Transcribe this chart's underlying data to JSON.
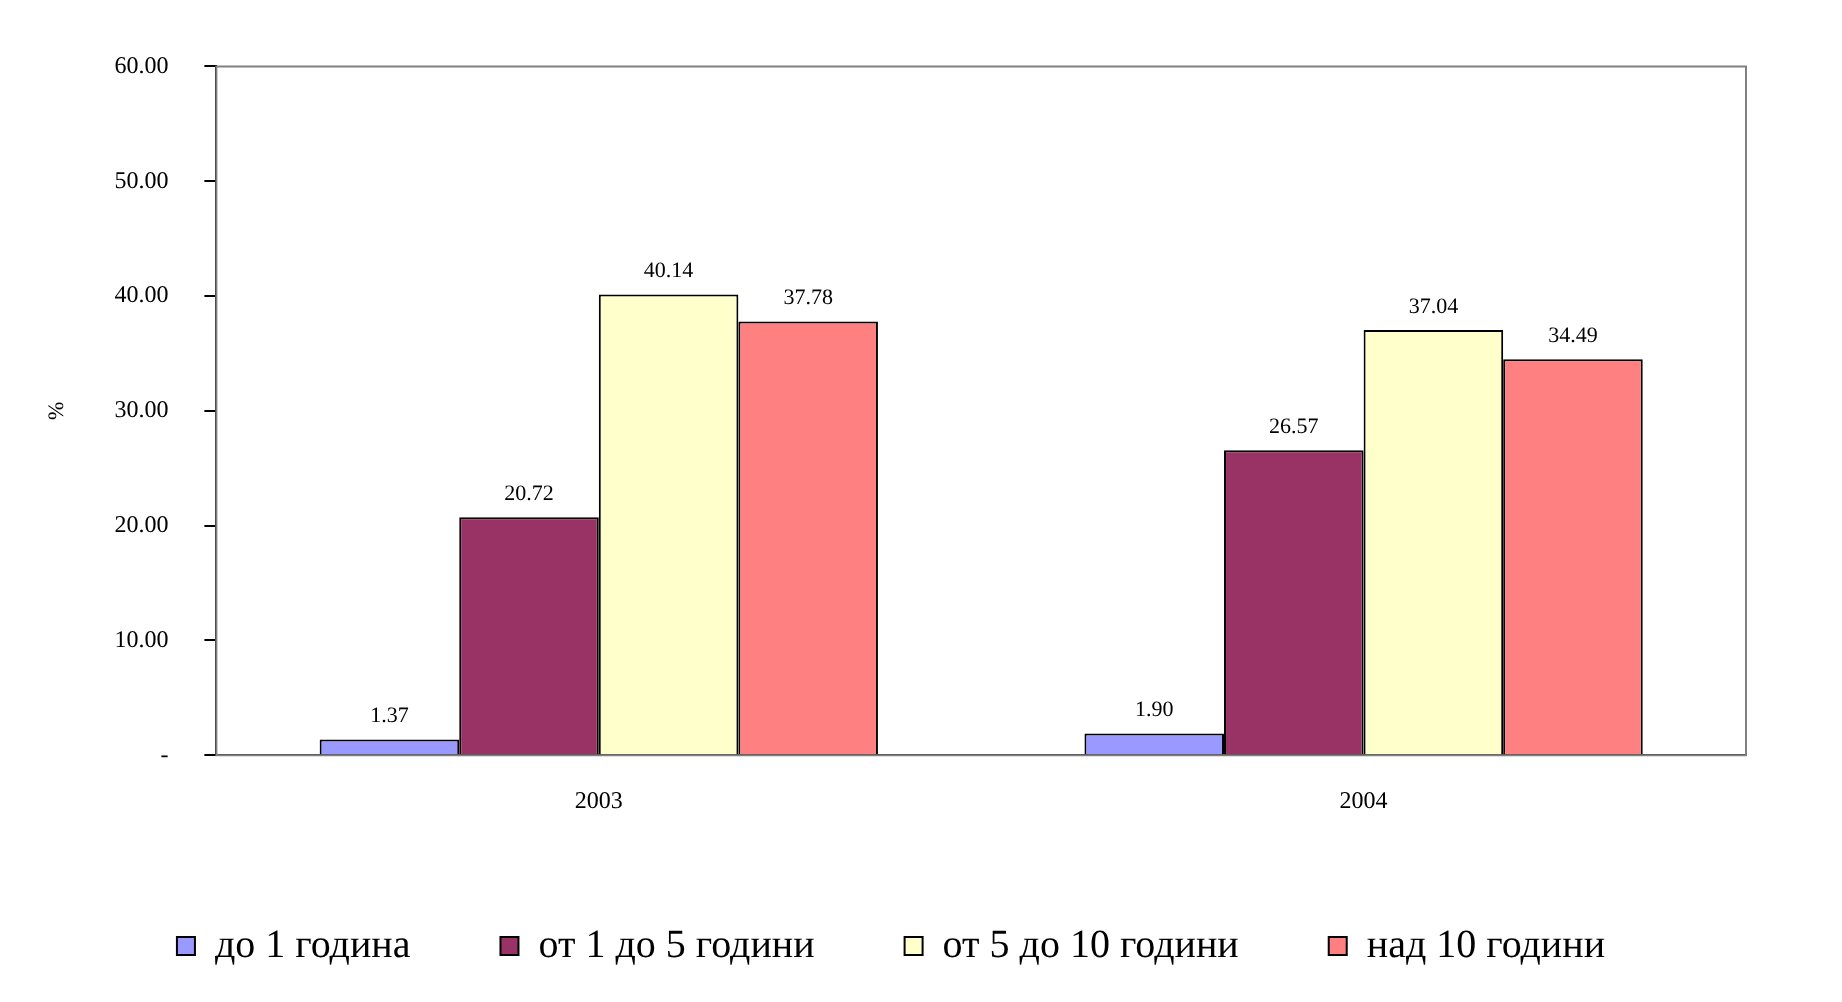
{
  "chart_data": {
    "type": "bar",
    "ylabel": "%",
    "categories": [
      "2003",
      "2004"
    ],
    "series": [
      {
        "name": "до 1 година",
        "color": "#9999ff",
        "values": [
          1.37,
          1.9
        ],
        "value_labels": [
          "1.37",
          "1.90"
        ]
      },
      {
        "name": "от 1 до 5 години",
        "color": "#993366",
        "values": [
          20.72,
          26.57
        ],
        "value_labels": [
          "20.72",
          "26.57"
        ]
      },
      {
        "name": "от 5 до 10 години",
        "color": "#ffffcc",
        "values": [
          40.14,
          37.04
        ],
        "value_labels": [
          "40.14",
          "37.04"
        ]
      },
      {
        "name": "над 10 години",
        "color": "#ff8080",
        "values": [
          37.78,
          34.49
        ],
        "value_labels": [
          "37.78",
          "34.49"
        ]
      }
    ],
    "ylim": [
      0,
      60
    ],
    "yticks": [
      {
        "value": 0,
        "label": "-"
      },
      {
        "value": 10,
        "label": "10.00"
      },
      {
        "value": 20,
        "label": "20.00"
      },
      {
        "value": 30,
        "label": "30.00"
      },
      {
        "value": 40,
        "label": "40.00"
      },
      {
        "value": 50,
        "label": "50.00"
      },
      {
        "value": 60,
        "label": "60.00"
      }
    ],
    "grid": false,
    "legend": "bottom"
  }
}
